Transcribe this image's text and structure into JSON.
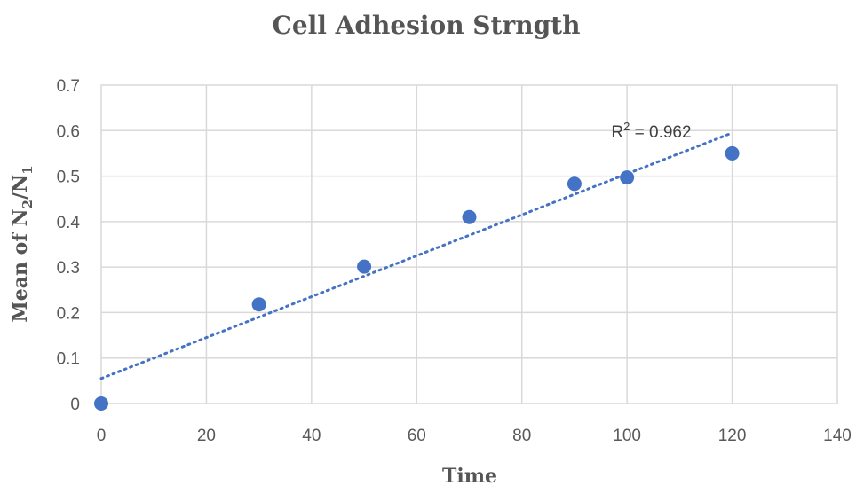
{
  "chart_data": {
    "type": "scatter",
    "title": "Cell Adhesion Strngth",
    "xlabel": "Time",
    "ylabel": "Mean of N",
    "ylabel_sub1": "2",
    "ylabel_slash": "/N",
    "ylabel_sub2": "1",
    "xlim": [
      0,
      140
    ],
    "ylim": [
      0,
      0.7
    ],
    "x_ticks": [
      0,
      20,
      40,
      60,
      80,
      100,
      120,
      140
    ],
    "y_ticks": [
      0,
      0.1,
      0.2,
      0.3,
      0.4,
      0.5,
      0.6,
      0.7
    ],
    "x_tick_labels": [
      "0",
      "20",
      "40",
      "60",
      "80",
      "100",
      "120",
      "140"
    ],
    "y_tick_labels": [
      "0",
      "0.1",
      "0.2",
      "0.3",
      "0.4",
      "0.5",
      "0.6",
      "0.7"
    ],
    "grid": true,
    "series": [
      {
        "x": [
          0,
          30,
          50,
          70,
          90,
          100,
          120
        ],
        "y": [
          0,
          0.218,
          0.301,
          0.41,
          0.483,
          0.497,
          0.55
        ],
        "color": "#4472c4"
      }
    ],
    "trendline": {
      "kind": "linear",
      "x": [
        0,
        120
      ],
      "y": [
        0.055,
        0.595
      ],
      "style": "dotted",
      "color": "#4472c4"
    },
    "annotation": {
      "text_prefix": "R",
      "text_sup": "2",
      "text_suffix": " = 0.962",
      "x": 97,
      "y": 0.595
    }
  }
}
